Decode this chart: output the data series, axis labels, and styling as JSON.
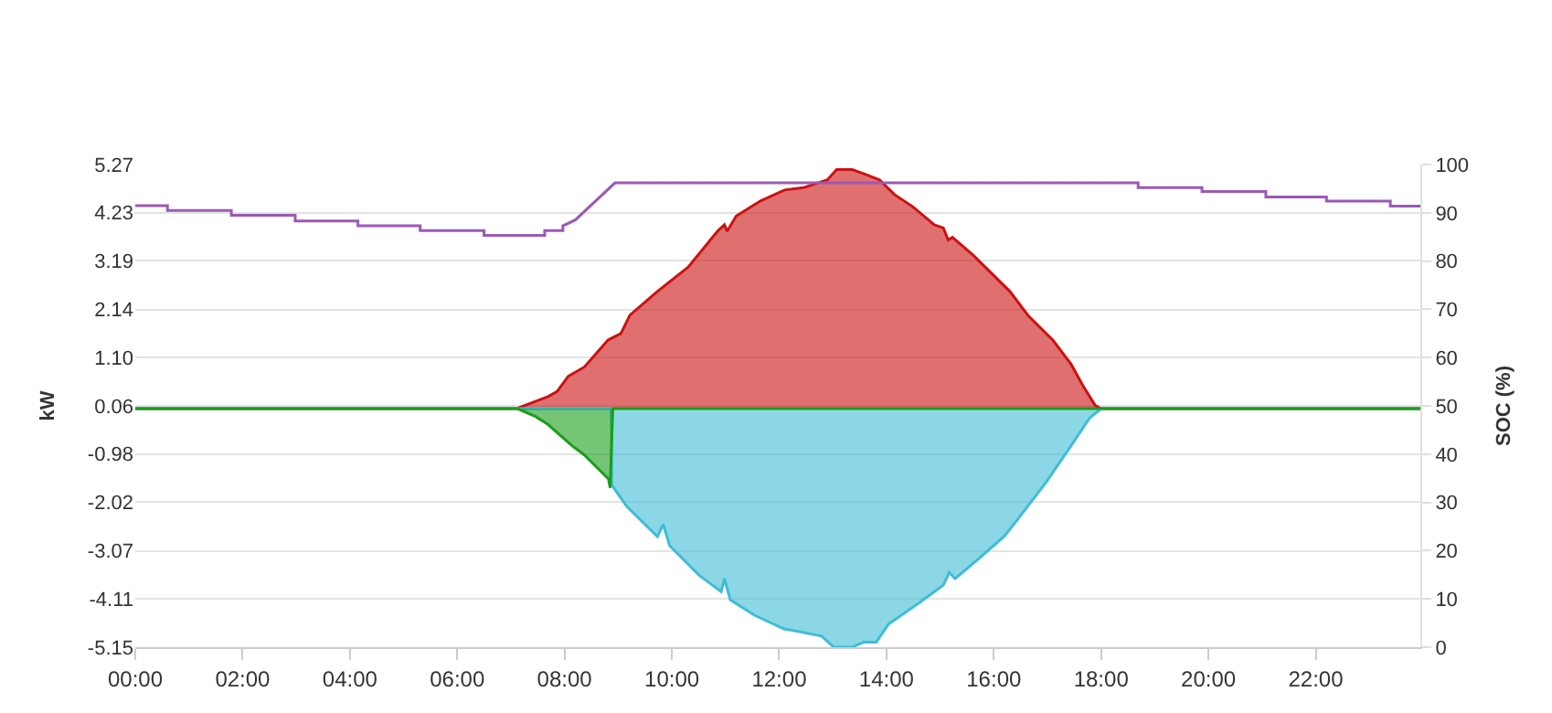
{
  "chart_data": {
    "type": "area",
    "ylabel": "kW",
    "y2label": "SOC (%)",
    "xlim": [
      0,
      23.95
    ],
    "xticks": [
      {
        "value": 0,
        "label": "00:00"
      },
      {
        "value": 2,
        "label": "02:00"
      },
      {
        "value": 4,
        "label": "04:00"
      },
      {
        "value": 6,
        "label": "06:00"
      },
      {
        "value": 8,
        "label": "08:00"
      },
      {
        "value": 10,
        "label": "10:00"
      },
      {
        "value": 12,
        "label": "12:00"
      },
      {
        "value": 14,
        "label": "14:00"
      },
      {
        "value": 16,
        "label": "16:00"
      },
      {
        "value": 18,
        "label": "18:00"
      },
      {
        "value": 20,
        "label": "20:00"
      },
      {
        "value": 22,
        "label": "22:00"
      }
    ],
    "ylim": [
      -5.15,
      5.27
    ],
    "yticks": [
      -5.15,
      -4.11,
      -3.07,
      -2.02,
      -0.98,
      0.06,
      {
        "value": 1.1,
        "label": "1.10"
      },
      2.14,
      3.19,
      4.23,
      5.27
    ],
    "y2lim": [
      0,
      100
    ],
    "y2ticks": [
      0,
      10,
      20,
      30,
      40,
      50,
      60,
      70,
      80,
      90,
      100
    ],
    "grid": "y",
    "marker": "none",
    "line_style": "solid",
    "series": [
      {
        "color": "#cc1111",
        "x": [
          0,
          7.1,
          7.69,
          7.86,
          8.07,
          8.37,
          8.81,
          9.05,
          9.22,
          9.73,
          10.3,
          10.85,
          10.98,
          11.03,
          11.2,
          11.66,
          12.1,
          12.45,
          12.9,
          13.07,
          13.36,
          13.58,
          13.87,
          14.15,
          14.49,
          14.89,
          15.06,
          15.15,
          15.23,
          15.62,
          15.96,
          16.3,
          16.64,
          17.1,
          17.44,
          17.66,
          17.89,
          18.0,
          23.95
        ],
        "values": [
          0,
          0,
          0.26,
          0.37,
          0.7,
          0.9,
          1.48,
          1.62,
          2.02,
          2.53,
          3.05,
          3.83,
          3.97,
          3.83,
          4.16,
          4.49,
          4.72,
          4.77,
          4.94,
          5.16,
          5.16,
          5.07,
          4.94,
          4.62,
          4.36,
          3.97,
          3.9,
          3.64,
          3.7,
          3.31,
          2.92,
          2.53,
          2.01,
          1.48,
          0.96,
          0.5,
          0.07,
          0,
          0
        ]
      },
      {
        "color": "#3fbcd6",
        "x": [
          0,
          8.87,
          8.88,
          9.16,
          9.73,
          9.84,
          9.96,
          10.52,
          10.92,
          10.98,
          11.09,
          11.54,
          12.1,
          12.22,
          12.79,
          13.02,
          13.36,
          13.58,
          13.81,
          14.04,
          14.6,
          15.06,
          15.17,
          15.28,
          15.74,
          16.19,
          16.42,
          16.98,
          17.44,
          17.78,
          18.0,
          23.95
        ],
        "values": [
          0,
          0,
          -1.65,
          -2.11,
          -2.76,
          -2.5,
          -2.96,
          -3.61,
          -3.95,
          -3.67,
          -4.13,
          -4.46,
          -4.76,
          -4.78,
          -4.91,
          -5.15,
          -5.15,
          -5.04,
          -5.04,
          -4.65,
          -4.2,
          -3.81,
          -3.54,
          -3.67,
          -3.22,
          -2.76,
          -2.43,
          -1.58,
          -0.8,
          -0.21,
          0,
          0
        ]
      },
      {
        "color": "#1a9e1a",
        "x": [
          0,
          7.12,
          7.46,
          7.69,
          8.14,
          8.37,
          8.82,
          8.85,
          8.9,
          23.95
        ],
        "values": [
          0,
          0,
          -0.17,
          -0.34,
          -0.8,
          -1.0,
          -1.52,
          -1.71,
          0,
          0
        ]
      },
      {
        "type": "line",
        "axis": "y2",
        "color": "#9b59b6",
        "x": [
          0,
          0.6,
          0.6,
          1.79,
          1.79,
          2.98,
          2.98,
          4.15,
          4.15,
          5.31,
          5.31,
          6.5,
          6.5,
          7.63,
          7.63,
          7.97,
          7.97,
          8.2,
          8.94,
          18.69,
          18.69,
          19.88,
          19.88,
          21.07,
          21.07,
          22.2,
          22.2,
          23.39,
          23.39,
          23.95
        ],
        "values": [
          91.5,
          91.5,
          90.5,
          90.5,
          89.5,
          89.5,
          88.3,
          88.3,
          87.3,
          87.3,
          86.3,
          86.3,
          85.3,
          85.3,
          86.3,
          86.3,
          87.3,
          88.5,
          96.2,
          96.2,
          95.2,
          95.2,
          94.4,
          94.4,
          93.3,
          93.3,
          92.4,
          92.4,
          91.4,
          91.4
        ]
      }
    ]
  }
}
